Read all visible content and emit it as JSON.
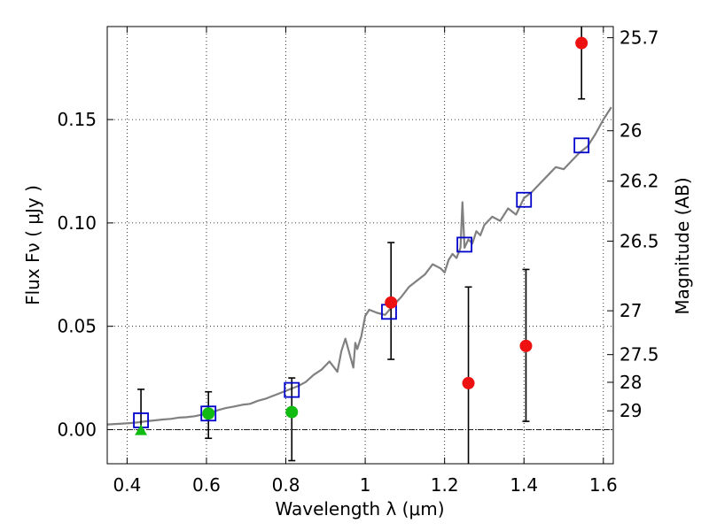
{
  "chart_data": {
    "type": "scatter",
    "title": "",
    "xlabel": "Wavelength  λ (μm)",
    "ylabel": "Flux  Fν  ( μJy )",
    "ylabel_right": "Magnitude (AB)",
    "xlim": [
      0.35,
      1.625
    ],
    "ylim": [
      -0.0165,
      0.195
    ],
    "grid": true,
    "x_ticks": [
      0.4,
      0.6,
      0.8,
      1.0,
      1.2,
      1.4,
      1.6
    ],
    "x_tick_labels": [
      "0.4",
      "0.6",
      "0.8",
      "1",
      "1.2",
      "1.4",
      "1.6"
    ],
    "y_ticks": [
      0.0,
      0.05,
      0.1,
      0.15
    ],
    "y_tick_labels": [
      "0.00",
      "0.05",
      "0.10",
      "0.15"
    ],
    "mag_ticks": [
      {
        "label": "25.7",
        "flux": 0.1896
      },
      {
        "label": "26",
        "flux": 0.1446
      },
      {
        "label": "26.2",
        "flux": 0.1202
      },
      {
        "label": "26.5",
        "flux": 0.0912
      },
      {
        "label": "27",
        "flux": 0.0575
      },
      {
        "label": "27.5",
        "flux": 0.0363
      },
      {
        "label": "28",
        "flux": 0.0229
      },
      {
        "label": "29",
        "flux": 0.0091
      }
    ],
    "model_sed": {
      "name": "model spectrum",
      "color": "#808080",
      "x": [
        0.35,
        0.38,
        0.41,
        0.43,
        0.45,
        0.47,
        0.49,
        0.51,
        0.53,
        0.55,
        0.57,
        0.59,
        0.61,
        0.63,
        0.65,
        0.67,
        0.69,
        0.71,
        0.73,
        0.75,
        0.77,
        0.79,
        0.81,
        0.83,
        0.85,
        0.87,
        0.89,
        0.91,
        0.93,
        0.94,
        0.95,
        0.96,
        0.97,
        0.975,
        0.98,
        0.99,
        1.0,
        1.01,
        1.03,
        1.05,
        1.07,
        1.09,
        1.11,
        1.13,
        1.15,
        1.17,
        1.19,
        1.2,
        1.21,
        1.22,
        1.23,
        1.24,
        1.245,
        1.25,
        1.26,
        1.27,
        1.28,
        1.29,
        1.3,
        1.32,
        1.34,
        1.36,
        1.38,
        1.4,
        1.42,
        1.44,
        1.46,
        1.48,
        1.5,
        1.52,
        1.54,
        1.56,
        1.58,
        1.6,
        1.62
      ],
      "y": [
        0.0025,
        0.0028,
        0.0032,
        0.0036,
        0.0041,
        0.0045,
        0.0049,
        0.0052,
        0.0058,
        0.006,
        0.0065,
        0.0073,
        0.0082,
        0.0095,
        0.0105,
        0.0112,
        0.012,
        0.0125,
        0.014,
        0.015,
        0.0165,
        0.018,
        0.0195,
        0.021,
        0.023,
        0.0265,
        0.029,
        0.033,
        0.028,
        0.038,
        0.044,
        0.037,
        0.03,
        0.042,
        0.039,
        0.045,
        0.055,
        0.058,
        0.0565,
        0.0555,
        0.06,
        0.064,
        0.069,
        0.072,
        0.075,
        0.08,
        0.078,
        0.076,
        0.082,
        0.085,
        0.083,
        0.088,
        0.11,
        0.088,
        0.092,
        0.09,
        0.096,
        0.094,
        0.099,
        0.103,
        0.101,
        0.107,
        0.104,
        0.112,
        0.115,
        0.119,
        0.123,
        0.127,
        0.126,
        0.13,
        0.134,
        0.137,
        0.143,
        0.15,
        0.156
      ]
    },
    "series": [
      {
        "name": "model photometry",
        "marker": "open-square",
        "color": "#0000cc",
        "x": [
          0.435,
          0.605,
          0.815,
          1.06,
          1.25,
          1.4,
          1.545
        ],
        "y": [
          0.0045,
          0.0078,
          0.0192,
          0.057,
          0.0895,
          0.1112,
          0.1375
        ]
      },
      {
        "name": "detections",
        "marker": "circle",
        "color": "#ee1111",
        "x": [
          1.065,
          1.26,
          1.405,
          1.545
        ],
        "y": [
          0.0615,
          0.0225,
          0.0405,
          0.187
        ],
        "yerr_low": [
          0.0275,
          0.0545,
          0.0365,
          0.027
        ],
        "yerr_high": [
          0.029,
          0.0465,
          0.037,
          0.027
        ]
      },
      {
        "name": "green points",
        "marker": "circle",
        "color": "#11bb11",
        "x": [
          0.605,
          0.815
        ],
        "y": [
          0.0078,
          0.0085
        ],
        "yerr_low": [
          0.012,
          0.0235
        ],
        "yerr_high": [
          0.0105,
          0.0165
        ]
      },
      {
        "name": "upper limit",
        "marker": "triangle",
        "color": "#11bb11",
        "x": [
          0.435
        ],
        "y": [
          -0.0005
        ],
        "yerr_low": [
          0.0
        ],
        "yerr_high": [
          0.02
        ]
      }
    ]
  }
}
